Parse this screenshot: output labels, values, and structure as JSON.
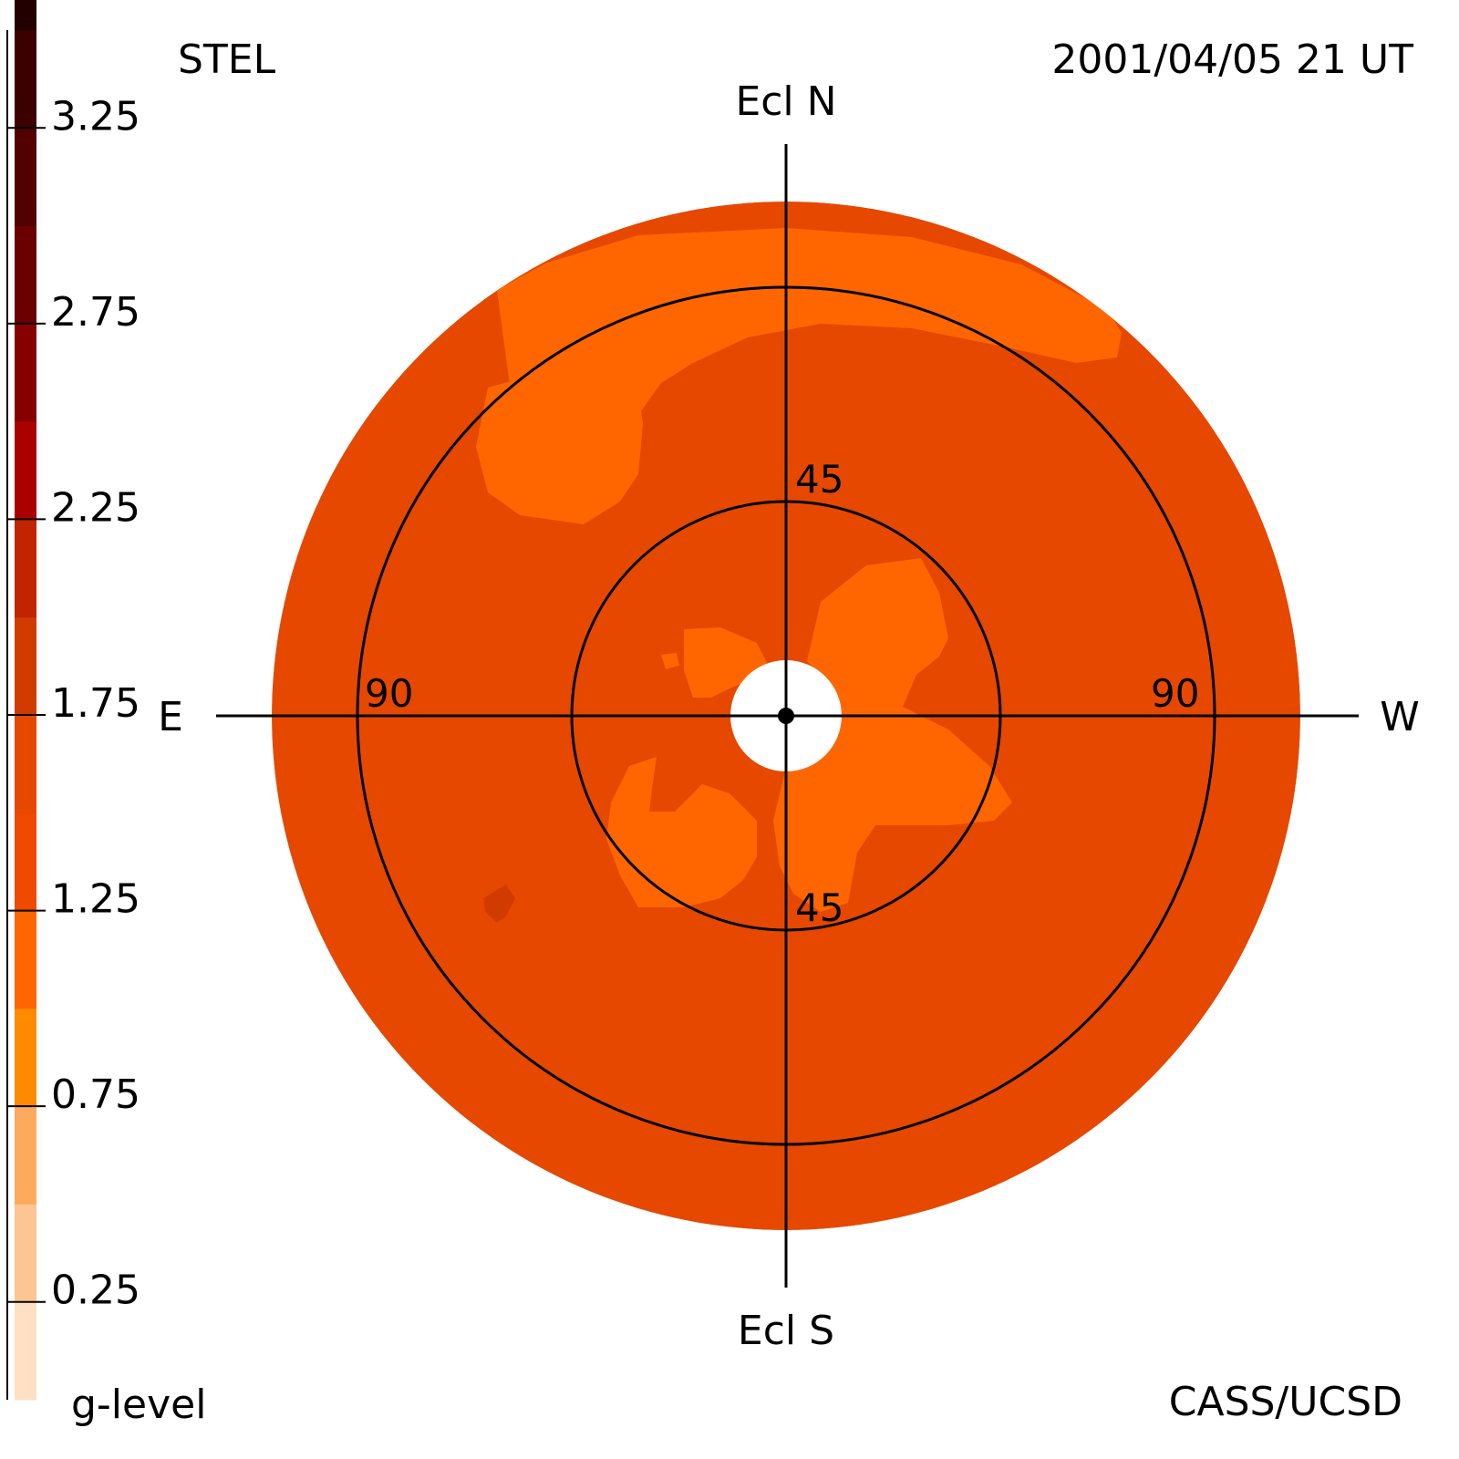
{
  "header": {
    "left": "STEL",
    "right": "2001/04/05 21 UT"
  },
  "footer": {
    "left": "g-level",
    "right": "CASS/UCSD"
  },
  "chart_data": {
    "type": "heatmap",
    "projection": "polar sky map",
    "title": "",
    "directions": {
      "north": "Ecl N",
      "south": "Ecl S",
      "east": "E",
      "west": "W"
    },
    "rings": [
      {
        "elongation_deg": 45,
        "label": "45"
      },
      {
        "elongation_deg": 90,
        "label": "90"
      }
    ],
    "ring_labels": {
      "inner_top": "45",
      "inner_bottom": "45",
      "outer_left": "90",
      "outer_right": "90"
    },
    "max_elongation_deg": 108,
    "sun_blank_radius_deg": 11,
    "colorbar": {
      "label": "g-level",
      "min": 0.0,
      "max": 3.5,
      "step": 0.25,
      "tick_values": [
        0.25,
        0.75,
        1.25,
        1.75,
        2.25,
        2.75,
        3.25
      ],
      "tick_labels": [
        "0.25",
        "0.75",
        "1.25",
        "1.75",
        "2.25",
        "2.75",
        "3.25"
      ],
      "colors": [
        "#ffe0c4",
        "#fcc593",
        "#fdaa5e",
        "#ff8a00",
        "#ff6600",
        "#f04a00",
        "#e64800",
        "#d23b00",
        "#c02400",
        "#aa0000",
        "#870000",
        "#6a0000",
        "#520000",
        "#3d0000",
        "#230000",
        "#100000"
      ]
    },
    "map": {
      "background_level": 1.1,
      "regions": [
        {
          "name": "north-rim patch",
          "level": 0.9
        },
        {
          "name": "northeast patch",
          "level": 0.9
        },
        {
          "name": "inner west patch",
          "level": 0.9
        },
        {
          "name": "inner northeast patch",
          "level": 0.9
        },
        {
          "name": "inner southeast patch",
          "level": 0.9
        },
        {
          "name": "southeast spot",
          "level": 1.4
        }
      ]
    }
  }
}
